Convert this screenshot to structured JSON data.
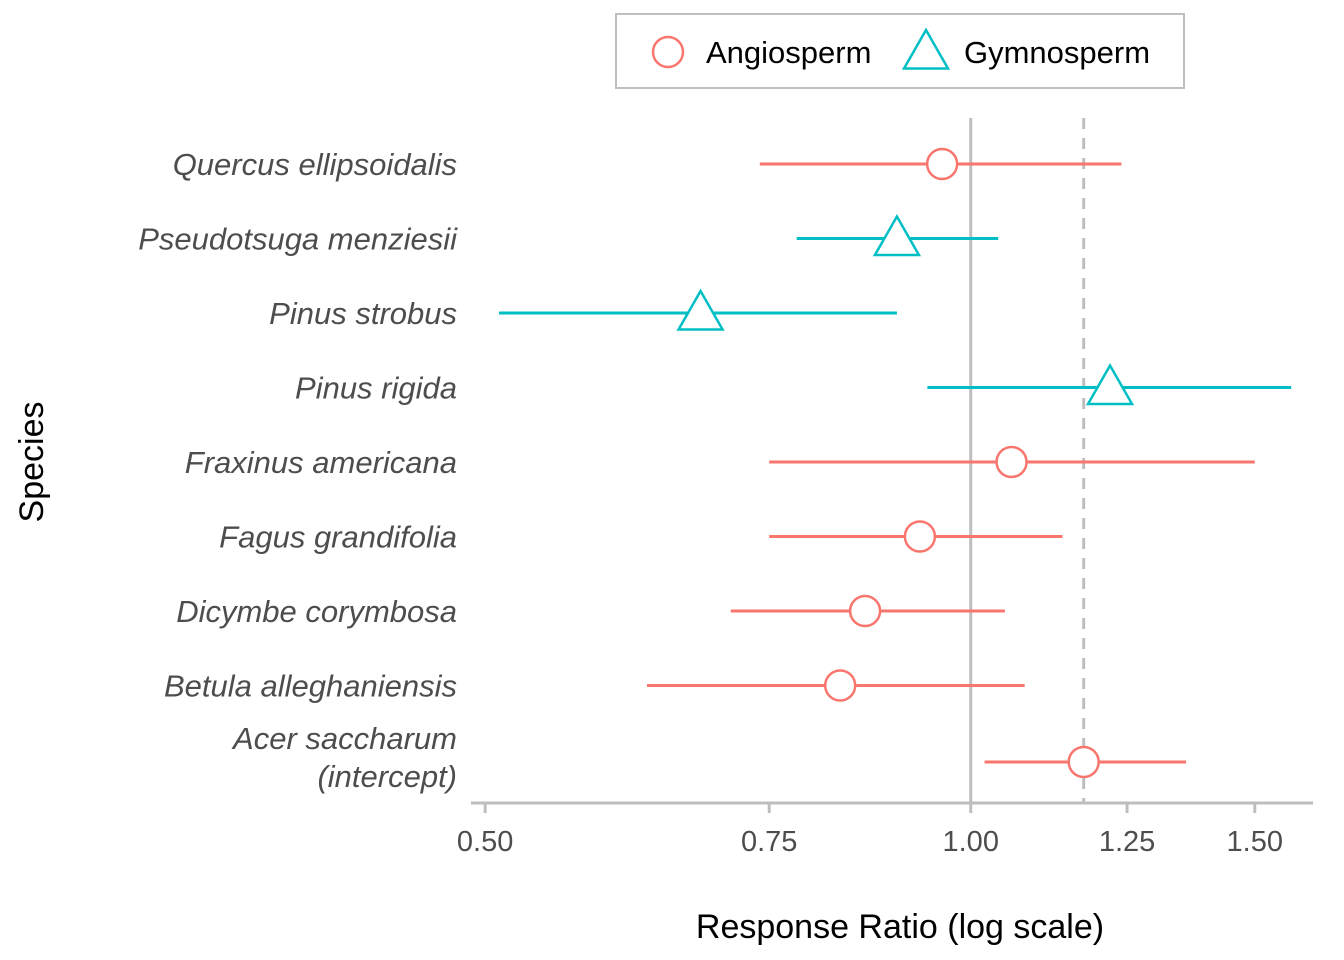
{
  "chart_data": {
    "type": "scatter",
    "subtype": "forest-plot-with-error-bars",
    "xlabel": "Response Ratio (log scale)",
    "ylabel": "Species",
    "x_scale": "log",
    "xlim": [
      0.49,
      1.63
    ],
    "x_ticks": [
      0.5,
      0.75,
      1.0,
      1.25,
      1.5
    ],
    "x_tick_labels": [
      "0.50",
      "0.75",
      "1.00",
      "1.25",
      "1.50"
    ],
    "reference_lines": [
      {
        "x": 1.0,
        "style": "solid",
        "color": "#bebebe"
      },
      {
        "x": 1.175,
        "style": "dashed",
        "color": "#bebebe"
      }
    ],
    "legend": {
      "position": "top",
      "entries": [
        {
          "label": "Angiosperm",
          "color": "#F8766D",
          "shape": "circle"
        },
        {
          "label": "Gymnosperm",
          "color": "#00BFC4",
          "shape": "triangle"
        }
      ]
    },
    "rows": [
      {
        "species": [
          "Quercus ellipsoidalis"
        ],
        "group": "Angiosperm",
        "estimate": 0.96,
        "lower": 0.74,
        "upper": 1.24
      },
      {
        "species": [
          "Pseudotsuga menziesii"
        ],
        "group": "Gymnosperm",
        "estimate": 0.9,
        "lower": 0.78,
        "upper": 1.04
      },
      {
        "species": [
          "Pinus strobus"
        ],
        "group": "Gymnosperm",
        "estimate": 0.68,
        "lower": 0.51,
        "upper": 0.9
      },
      {
        "species": [
          "Pinus rigida"
        ],
        "group": "Gymnosperm",
        "estimate": 1.22,
        "lower": 0.94,
        "upper": 1.58
      },
      {
        "species": [
          "Fraxinus americana"
        ],
        "group": "Angiosperm",
        "estimate": 1.06,
        "lower": 0.75,
        "upper": 1.5
      },
      {
        "species": [
          "Fagus grandifolia"
        ],
        "group": "Angiosperm",
        "estimate": 0.93,
        "lower": 0.75,
        "upper": 1.14
      },
      {
        "species": [
          "Dicymbe corymbosa"
        ],
        "group": "Angiosperm",
        "estimate": 0.86,
        "lower": 0.71,
        "upper": 1.05
      },
      {
        "species": [
          "Betula alleghaniensis"
        ],
        "group": "Angiosperm",
        "estimate": 0.83,
        "lower": 0.63,
        "upper": 1.08
      },
      {
        "species": [
          "Acer saccharum",
          "(intercept)"
        ],
        "group": "Angiosperm",
        "estimate": 1.175,
        "lower": 1.02,
        "upper": 1.36
      }
    ]
  }
}
